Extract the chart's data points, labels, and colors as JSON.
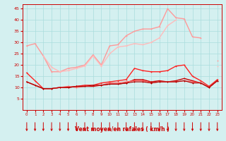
{
  "title": "",
  "xlabel": "Vent moyen/en rafales ( km/h )",
  "bg_color": "#d4f0f0",
  "grid_color": "#aadddd",
  "xlim": [
    -0.5,
    23.5
  ],
  "ylim": [
    0,
    47
  ],
  "yticks": [
    5,
    10,
    15,
    20,
    25,
    30,
    35,
    40,
    45
  ],
  "xticks": [
    0,
    1,
    2,
    3,
    4,
    5,
    6,
    7,
    8,
    9,
    10,
    11,
    12,
    13,
    14,
    15,
    16,
    17,
    18,
    19,
    20,
    21,
    22,
    23
  ],
  "lines": [
    {
      "x": [
        0,
        1,
        2,
        3,
        4,
        5,
        6,
        7,
        8,
        9,
        10,
        11,
        12,
        13,
        14,
        15,
        16,
        17,
        18,
        19,
        20,
        21,
        22,
        23
      ],
      "y": [
        28.5,
        29.5,
        24,
        17,
        17,
        18.5,
        19,
        20,
        24.5,
        20,
        28.5,
        29,
        33,
        35,
        36,
        36,
        37,
        45,
        41,
        40.5,
        32.5,
        32,
        null,
        22
      ],
      "color": "#ff9999",
      "lw": 1.0,
      "ms": 2.0
    },
    {
      "x": [
        2,
        3,
        4,
        5,
        6,
        7,
        8,
        9,
        10,
        11,
        12,
        13,
        14,
        15,
        16,
        17,
        18,
        19,
        20,
        21,
        22,
        23
      ],
      "y": [
        24,
        19,
        17,
        17.5,
        18.5,
        19.5,
        24,
        19.5,
        25,
        28,
        28.5,
        29.5,
        29,
        30,
        32,
        37.5,
        40,
        null,
        null,
        null,
        null,
        19.5
      ],
      "color": "#ffbbbb",
      "lw": 1.0,
      "ms": 2.0
    },
    {
      "x": [
        0,
        1,
        2,
        3,
        4,
        5,
        6,
        7,
        8,
        9,
        10,
        11,
        12,
        13,
        14,
        15,
        16,
        17,
        18,
        19,
        20,
        21,
        22,
        23
      ],
      "y": [
        16.5,
        13,
        9.5,
        9.5,
        10,
        10,
        10.5,
        11,
        11,
        12,
        12.5,
        13,
        13.5,
        18.5,
        17.5,
        17,
        17,
        17.5,
        19.5,
        20,
        15,
        13,
        10.5,
        13.5
      ],
      "color": "#ff2222",
      "lw": 1.0,
      "ms": 2.0
    },
    {
      "x": [
        0,
        1,
        2,
        3,
        4,
        5,
        6,
        7,
        8,
        9,
        10,
        11,
        12,
        13,
        14,
        15,
        16,
        17,
        18,
        19,
        20,
        21,
        22,
        23
      ],
      "y": [
        12.5,
        11,
        9.5,
        9.5,
        10,
        10,
        10.5,
        10.5,
        10.5,
        11,
        11.5,
        11.5,
        12,
        13.5,
        13.5,
        12.5,
        13,
        12.5,
        13,
        14,
        13,
        12,
        10,
        13
      ],
      "color": "#cc0000",
      "lw": 1.0,
      "ms": 2.0
    },
    {
      "x": [
        0,
        1,
        2,
        3,
        4,
        5,
        6,
        7,
        8,
        9,
        10,
        11,
        12,
        13,
        14,
        15,
        16,
        17,
        18,
        19,
        20,
        21,
        22,
        23
      ],
      "y": [
        12.5,
        11,
        9.5,
        9.5,
        10,
        10.5,
        10,
        10.5,
        11,
        11,
        12,
        12,
        12.5,
        13,
        13,
        12,
        12.5,
        12.5,
        12.5,
        13,
        12.5,
        12,
        10,
        13
      ],
      "color": "#ff6666",
      "lw": 1.0,
      "ms": 2.0
    },
    {
      "x": [
        0,
        1,
        2,
        3,
        4,
        5,
        6,
        7,
        8,
        9,
        10,
        11,
        12,
        13,
        14,
        15,
        16,
        17,
        18,
        19,
        20,
        21,
        22,
        23
      ],
      "y": [
        12.5,
        11,
        9.5,
        9.5,
        10,
        10,
        10.5,
        10.5,
        11,
        11,
        11.5,
        11.5,
        12,
        12.5,
        12.5,
        12,
        12.5,
        12.5,
        12.5,
        13,
        12,
        12,
        10,
        13
      ],
      "color": "#aa0000",
      "lw": 0.8,
      "ms": 1.8
    }
  ],
  "arrow_color": "#cc0000"
}
